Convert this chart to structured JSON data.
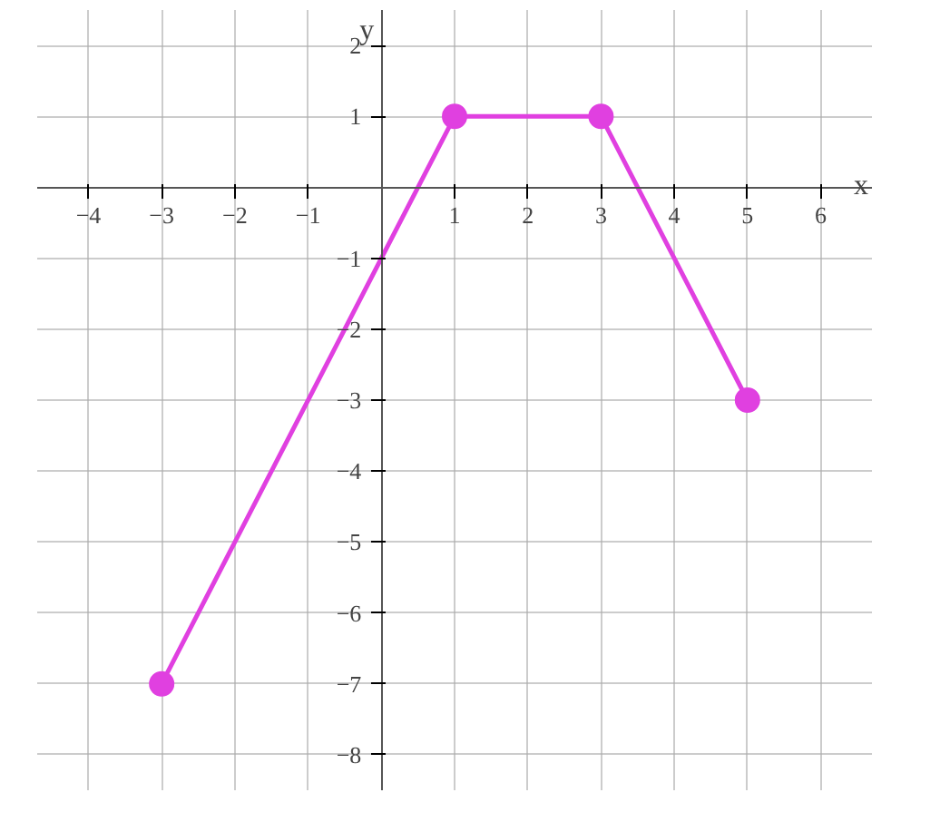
{
  "chart_data": {
    "type": "line",
    "xlabel": "x",
    "ylabel": "y",
    "x": [
      -3,
      1,
      3,
      5
    ],
    "series": [
      {
        "color": "#e040e0",
        "values": [
          -7,
          1,
          1,
          -3
        ]
      }
    ],
    "xlim": [
      -4.7,
      6.7
    ],
    "ylim": [
      -8.5,
      2.5
    ],
    "xticks": [
      {
        "value": -4,
        "label": "−4"
      },
      {
        "value": -3,
        "label": "−3"
      },
      {
        "value": -2,
        "label": "−2"
      },
      {
        "value": -1,
        "label": "−1"
      },
      1,
      2,
      3,
      4,
      5,
      6
    ],
    "yticks": [
      {
        "value": -8,
        "label": "−8"
      },
      {
        "value": -7,
        "label": "−7"
      },
      {
        "value": -6,
        "label": "−6"
      },
      {
        "value": -5,
        "label": "−5"
      },
      {
        "value": -4,
        "label": "−4"
      },
      {
        "value": -3,
        "label": "−3"
      },
      {
        "value": -2,
        "label": "−2"
      },
      {
        "value": -1,
        "label": "−1"
      },
      1,
      2
    ],
    "grid": true,
    "marker": "circle",
    "line_style": "solid"
  }
}
